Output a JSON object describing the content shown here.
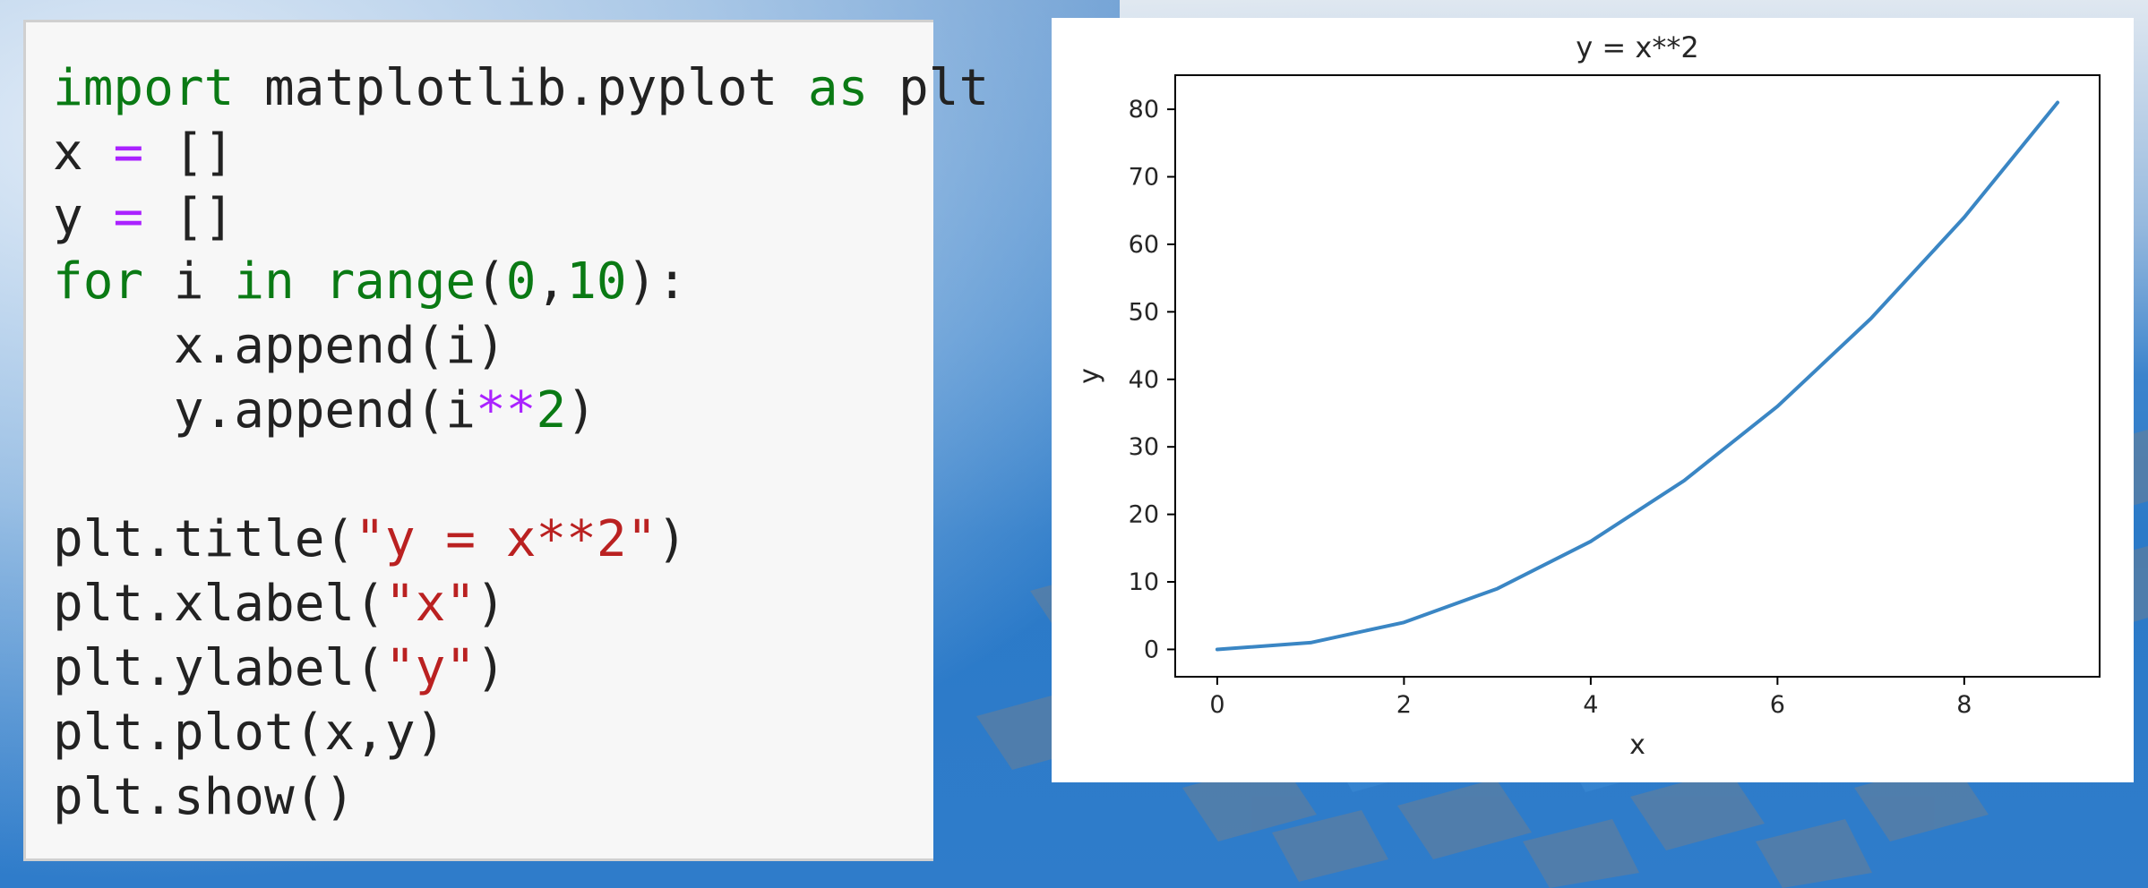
{
  "code": {
    "lines": [
      [
        {
          "t": "import",
          "c": "kw"
        },
        {
          "t": " matplotlib.pyplot ",
          "c": ""
        },
        {
          "t": "as",
          "c": "kw"
        },
        {
          "t": " plt",
          "c": ""
        }
      ],
      [
        {
          "t": "x ",
          "c": ""
        },
        {
          "t": "=",
          "c": "op"
        },
        {
          "t": " []",
          "c": ""
        }
      ],
      [
        {
          "t": "y ",
          "c": ""
        },
        {
          "t": "=",
          "c": "op"
        },
        {
          "t": " []",
          "c": ""
        }
      ],
      [
        {
          "t": "for",
          "c": "kw"
        },
        {
          "t": " i ",
          "c": ""
        },
        {
          "t": "in",
          "c": "kw"
        },
        {
          "t": " ",
          "c": ""
        },
        {
          "t": "range",
          "c": "kwb"
        },
        {
          "t": "(",
          "c": ""
        },
        {
          "t": "0",
          "c": "num"
        },
        {
          "t": ",",
          "c": ""
        },
        {
          "t": "10",
          "c": "num"
        },
        {
          "t": "):",
          "c": ""
        }
      ],
      [
        {
          "t": "    x.append(i)",
          "c": ""
        }
      ],
      [
        {
          "t": "    y.append(i",
          "c": ""
        },
        {
          "t": "**",
          "c": "op"
        },
        {
          "t": "2",
          "c": "num"
        },
        {
          "t": ")",
          "c": ""
        }
      ],
      [
        {
          "t": "",
          "c": ""
        }
      ],
      [
        {
          "t": "plt.title(",
          "c": ""
        },
        {
          "t": "\"y = x**2\"",
          "c": "str"
        },
        {
          "t": ")",
          "c": ""
        }
      ],
      [
        {
          "t": "plt.xlabel(",
          "c": ""
        },
        {
          "t": "\"x\"",
          "c": "str"
        },
        {
          "t": ")",
          "c": ""
        }
      ],
      [
        {
          "t": "plt.ylabel(",
          "c": ""
        },
        {
          "t": "\"y\"",
          "c": "str"
        },
        {
          "t": ")",
          "c": ""
        }
      ],
      [
        {
          "t": "plt.plot(x,y)",
          "c": ""
        }
      ],
      [
        {
          "t": "plt.show()",
          "c": ""
        }
      ]
    ]
  },
  "chart_data": {
    "type": "line",
    "title": "y = x**2",
    "xlabel": "x",
    "ylabel": "y",
    "x": [
      0,
      1,
      2,
      3,
      4,
      5,
      6,
      7,
      8,
      9
    ],
    "series": [
      {
        "values": [
          0,
          1,
          4,
          9,
          16,
          25,
          36,
          49,
          64,
          81
        ],
        "color": "#3a86c4"
      }
    ],
    "xticks": [
      0,
      2,
      4,
      6,
      8
    ],
    "yticks": [
      0,
      10,
      20,
      30,
      40,
      50,
      60,
      70,
      80
    ],
    "xlim": [
      -0.45,
      9.45
    ],
    "ylim": [
      -4.05,
      85.05
    ],
    "grid": false
  }
}
